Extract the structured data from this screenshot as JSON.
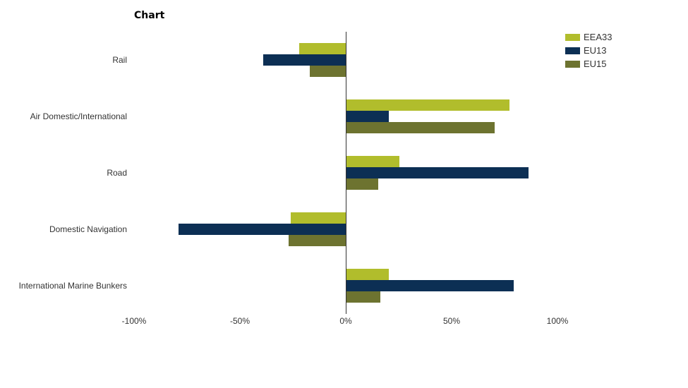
{
  "chart_data": {
    "type": "bar",
    "orientation": "horizontal",
    "title": "Chart",
    "categories": [
      "Rail",
      "Air Domestic/International",
      "Road",
      "Domestic Navigation",
      "International Marine Bunkers"
    ],
    "series": [
      {
        "name": "EEA33",
        "color": "#b1bd2c",
        "values": [
          -22,
          77,
          25,
          -26,
          20
        ]
      },
      {
        "name": "EU13",
        "color": "#0c2f54",
        "values": [
          -39,
          20,
          86,
          -79,
          79
        ]
      },
      {
        "name": "EU15",
        "color": "#6d7330",
        "values": [
          -17,
          70,
          15,
          -27,
          16
        ]
      }
    ],
    "unit": "%",
    "xlim": [
      -100,
      100
    ],
    "x_ticks": [
      {
        "value": -100,
        "label": "-100%"
      },
      {
        "value": -50,
        "label": "-50%"
      },
      {
        "value": 0,
        "label": "0%"
      },
      {
        "value": 50,
        "label": "50%"
      },
      {
        "value": 100,
        "label": "100%"
      }
    ],
    "legend_position": "top-right",
    "grid": false,
    "axis_color": "#333333",
    "background_color": "#ffffff"
  }
}
